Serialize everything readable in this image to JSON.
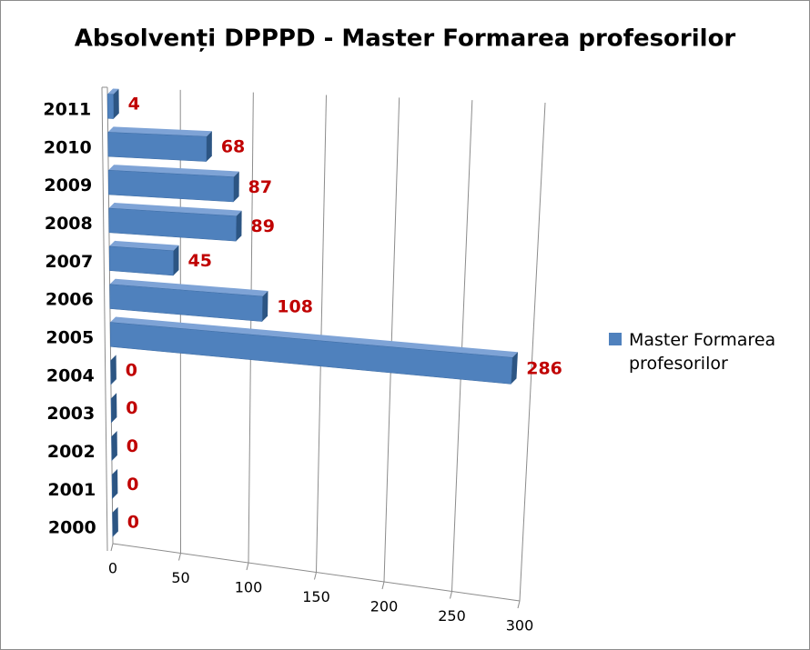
{
  "chart_data": {
    "type": "bar",
    "orientation": "horizontal",
    "title": "Absolvenți DPPPD - Master Formarea profesorilor",
    "categories": [
      "2000",
      "2001",
      "2002",
      "2003",
      "2004",
      "2005",
      "2006",
      "2007",
      "2008",
      "2009",
      "2010",
      "2011"
    ],
    "series": [
      {
        "name": "Master Formarea profesorilor",
        "color": "#4f81bd",
        "values": [
          0,
          0,
          0,
          0,
          0,
          286,
          108,
          45,
          89,
          87,
          68,
          4
        ]
      }
    ],
    "xlim": [
      0,
      300
    ],
    "xticks": [
      0,
      50,
      100,
      150,
      200,
      250,
      300
    ],
    "grid": true,
    "legend": "right"
  }
}
